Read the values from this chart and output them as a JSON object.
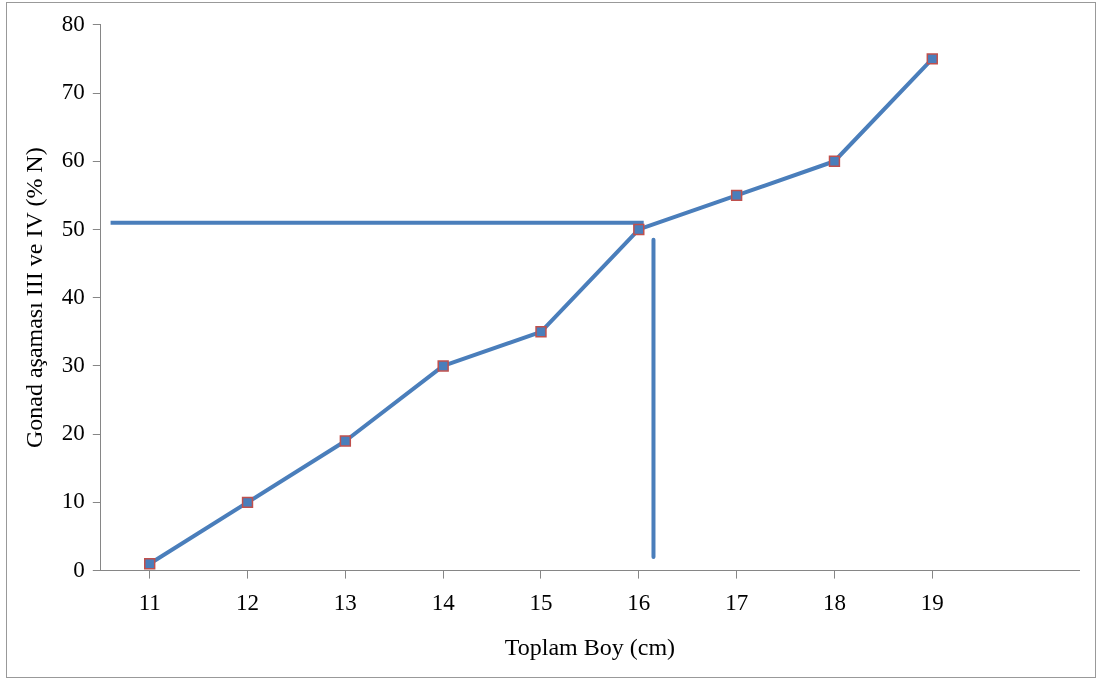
{
  "chart_data": {
    "type": "line",
    "xlabel": "Toplam Boy (cm)",
    "ylabel": "Gonad aşaması III ve IV (% N)",
    "xlim": [
      10.5,
      20.5
    ],
    "xticks": [
      11,
      12,
      13,
      14,
      15,
      16,
      17,
      18,
      19
    ],
    "ylim": [
      0,
      80
    ],
    "yticks": [
      0,
      10,
      20,
      30,
      40,
      50,
      60,
      70,
      80
    ],
    "grid": false,
    "legend": false,
    "marker": "square",
    "line_style": "solid",
    "series": [
      {
        "color": "#4a7ebb",
        "x": [
          11,
          12,
          13,
          14,
          15,
          16,
          17,
          18,
          19
        ],
        "values": [
          1,
          10,
          19,
          30,
          35,
          50,
          55,
          60,
          75
        ]
      },
      {
        "type": "line",
        "marker": "none",
        "color": "#4a7ebb",
        "x": [
          10.6,
          16.05
        ],
        "values": [
          51,
          51
        ]
      },
      {
        "type": "line",
        "marker": "none",
        "color": "#4a7ebb",
        "x": [
          16.15,
          16.15
        ],
        "values": [
          48.5,
          2
        ]
      }
    ]
  }
}
